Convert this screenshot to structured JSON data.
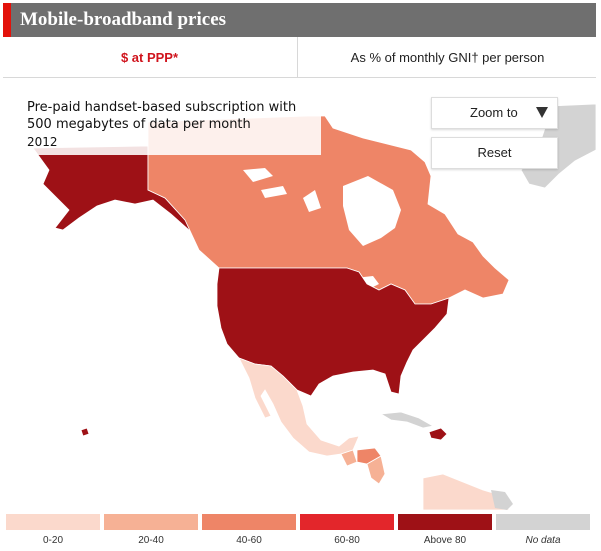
{
  "header": {
    "title": "Mobile-broadband prices"
  },
  "tabs": [
    {
      "label": "$ at PPP*",
      "active": true
    },
    {
      "label": "As % of monthly GNI† per person",
      "active": false
    }
  ],
  "caption": {
    "line1": "Pre-paid handset-based subscription with",
    "line2": "500 megabytes of data per month",
    "year": "2012"
  },
  "controls": {
    "zoom_label": "Zoom to",
    "reset_label": "Reset"
  },
  "colors": {
    "0-20": "#fbd9cc",
    "20-40": "#f6b195",
    "40-60": "#ee8567",
    "60-80": "#e3262b",
    "above80": "#9e1116",
    "nodata": "#d3d3d3"
  },
  "legend": [
    {
      "label": "0-20",
      "color": "#fbd9cc"
    },
    {
      "label": "20-40",
      "color": "#f6b195"
    },
    {
      "label": "40-60",
      "color": "#ee8567"
    },
    {
      "label": "60-80",
      "color": "#e3262b"
    },
    {
      "label": "Above 80",
      "color": "#9e1116"
    },
    {
      "label": "No data",
      "color": "#d3d3d3"
    }
  ],
  "regions": [
    {
      "name": "Canada",
      "class": "40-60"
    },
    {
      "name": "United States",
      "class": "above80"
    },
    {
      "name": "Alaska",
      "class": "above80"
    },
    {
      "name": "Mexico",
      "class": "0-20"
    },
    {
      "name": "Greenland",
      "class": "nodata"
    },
    {
      "name": "Cuba",
      "class": "nodata"
    },
    {
      "name": "Dominican Republic",
      "class": "above80"
    },
    {
      "name": "Honduras",
      "class": "40-60"
    },
    {
      "name": "Guatemala",
      "class": "20-40"
    },
    {
      "name": "Nicaragua",
      "class": "20-40"
    },
    {
      "name": "Venezuela",
      "class": "0-20"
    }
  ]
}
